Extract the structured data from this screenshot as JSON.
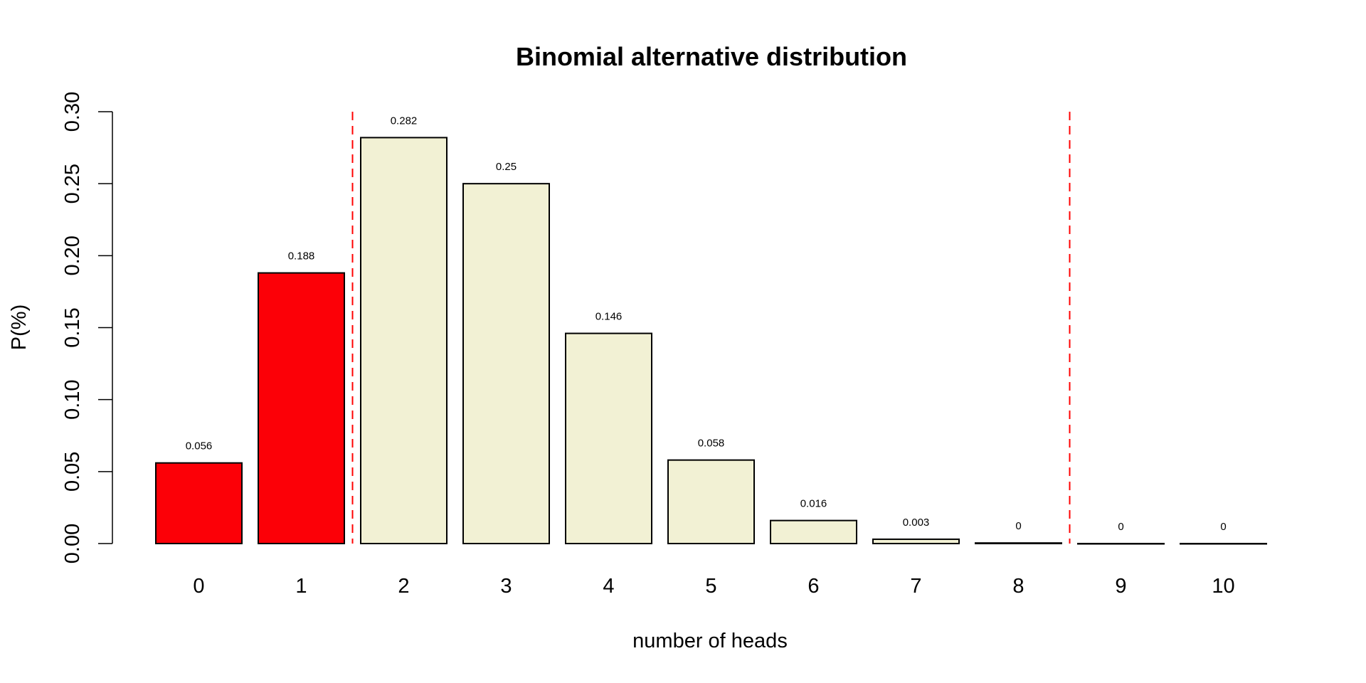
{
  "chart_data": {
    "type": "bar",
    "title": "Binomial alternative distribution",
    "xlabel": "number of heads",
    "ylabel": "P(%)",
    "categories": [
      "0",
      "1",
      "2",
      "3",
      "4",
      "5",
      "6",
      "7",
      "8",
      "9",
      "10"
    ],
    "values": [
      0.056,
      0.188,
      0.282,
      0.25,
      0.146,
      0.058,
      0.016,
      0.003,
      0.0004,
      0.0,
      0.0
    ],
    "value_labels": [
      "0.056",
      "0.188",
      "0.282",
      "0.25",
      "0.146",
      "0.058",
      "0.016",
      "0.003",
      "0",
      "0",
      "0"
    ],
    "highlighted": [
      true,
      true,
      false,
      false,
      false,
      false,
      false,
      false,
      false,
      false,
      false
    ],
    "ylim": [
      0,
      0.3
    ],
    "yticks": [
      "0.00",
      "0.05",
      "0.10",
      "0.15",
      "0.20",
      "0.25",
      "0.30"
    ],
    "critical_lines_between": [
      [
        1,
        2
      ],
      [
        8,
        9
      ]
    ],
    "grid": false,
    "colors": {
      "highlight": "#fc0007",
      "normal": "#f2f1d4",
      "critical_line": "#ff0000"
    }
  }
}
